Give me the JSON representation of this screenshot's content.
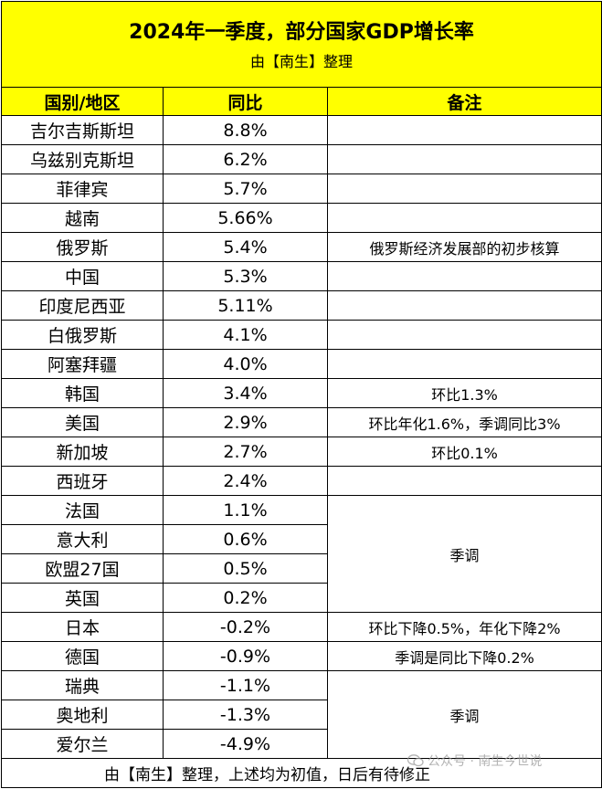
{
  "title": "2024年一季度，部分国家GDP增长率",
  "subtitle": "由【南生】整理",
  "headers": {
    "country": "国别/地区",
    "yoy": "同比",
    "note": "备注"
  },
  "rows": [
    {
      "country": "吉尔吉斯斯坦",
      "yoy": "8.8%"
    },
    {
      "country": "乌兹别克斯坦",
      "yoy": "6.2%"
    },
    {
      "country": "菲律宾",
      "yoy": "5.7%"
    },
    {
      "country": "越南",
      "yoy": "5.66%"
    },
    {
      "country": "俄罗斯",
      "yoy": "5.4%"
    },
    {
      "country": "中国",
      "yoy": "5.3%"
    },
    {
      "country": "印度尼西亚",
      "yoy": "5.11%"
    },
    {
      "country": "白俄罗斯",
      "yoy": "4.1%"
    },
    {
      "country": "阿塞拜疆",
      "yoy": "4.0%"
    },
    {
      "country": "韩国",
      "yoy": "3.4%"
    },
    {
      "country": "美国",
      "yoy": "2.9%"
    },
    {
      "country": "新加坡",
      "yoy": "2.7%"
    },
    {
      "country": "西班牙",
      "yoy": "2.4%"
    },
    {
      "country": "法国",
      "yoy": "1.1%"
    },
    {
      "country": "意大利",
      "yoy": "0.6%"
    },
    {
      "country": "欧盟27国",
      "yoy": "0.5%"
    },
    {
      "country": "英国",
      "yoy": "0.2%"
    },
    {
      "country": "日本",
      "yoy": "-0.2%"
    },
    {
      "country": "德国",
      "yoy": "-0.9%"
    },
    {
      "country": "瑞典",
      "yoy": "-1.1%"
    },
    {
      "country": "奥地利",
      "yoy": "-1.3%"
    },
    {
      "country": "爱尔兰",
      "yoy": "-4.9%"
    }
  ],
  "notes": {
    "russia": "俄罗斯经济发展部的初步核算",
    "korea": "环比1.3%",
    "usa": "环比年化1.6%，季调同比3%",
    "singapore": "环比0.1%",
    "europe_group": "季调",
    "japan": "环比下降0.5%，年化下降2%",
    "germany": "季调是同比下降0.2%",
    "nordic_group": "季调"
  },
  "footer": "由【南生】整理，上述均为初值，日后有待修正",
  "watermark": "公众号 · 南生今世说",
  "colors": {
    "header_bg": "#FFFF00",
    "border": "#000000"
  }
}
